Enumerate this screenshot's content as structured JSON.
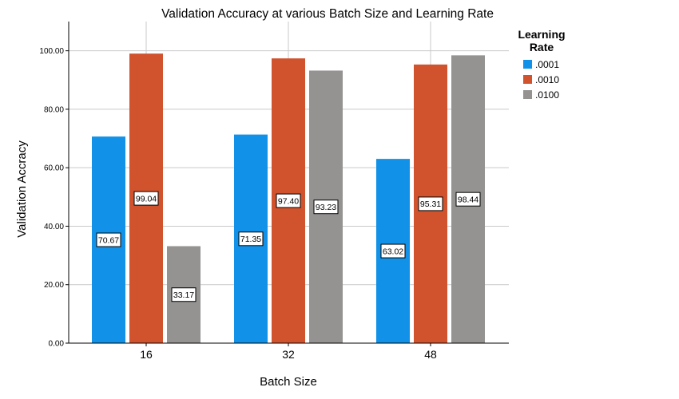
{
  "chart_data": {
    "type": "bar",
    "title": "Validation Accuracy at various Batch Size and Learning Rate",
    "xlabel": "Batch Size",
    "ylabel": "Validation Accracy",
    "categories": [
      "16",
      "32",
      "48"
    ],
    "ylim": [
      0,
      110
    ],
    "yticks": [
      "0.00",
      "20.00",
      "40.00",
      "60.00",
      "80.00",
      "100.00"
    ],
    "ytick_values": [
      0,
      20,
      40,
      60,
      80,
      100
    ],
    "grid": true,
    "legend": {
      "title_lines": [
        "Learning",
        "Rate"
      ],
      "placement": "right"
    },
    "series": [
      {
        "name": ".0001",
        "color": "#1192e8",
        "values": [
          70.67,
          71.35,
          63.02
        ],
        "labels": [
          "70.67",
          "71.35",
          "63.02"
        ]
      },
      {
        "name": ".0010",
        "color": "#d1532e",
        "values": [
          99.04,
          97.4,
          95.31
        ],
        "labels": [
          "99.04",
          "97.40",
          "95.31"
        ]
      },
      {
        "name": ".0100",
        "color": "#959392",
        "values": [
          33.17,
          93.23,
          98.44
        ],
        "labels": [
          "33.17",
          "93.23",
          "98.44"
        ]
      }
    ]
  }
}
